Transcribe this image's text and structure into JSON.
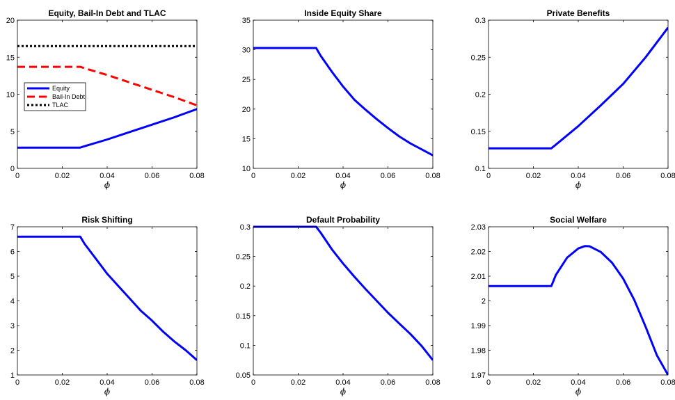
{
  "chart_data": [
    {
      "type": "line",
      "title": "Equity, Bail-In Debt and TLAC",
      "xlabel": "ϕ",
      "ylabel": "",
      "xlim": [
        0,
        0.08
      ],
      "ylim": [
        0,
        20
      ],
      "xticks": [
        0,
        0.02,
        0.04,
        0.06,
        0.08
      ],
      "xtick_labels": [
        "0",
        "0.02",
        "0.04",
        "0.06",
        "0.08"
      ],
      "yticks": [
        0,
        5,
        10,
        15,
        20
      ],
      "ytick_labels": [
        "0",
        "5",
        "10",
        "15",
        "20"
      ],
      "legend": "upper-left",
      "series": [
        {
          "name": "Equity",
          "color": "#0000ff",
          "style": "solid",
          "x": [
            0,
            0.01,
            0.02,
            0.028,
            0.03,
            0.04,
            0.05,
            0.06,
            0.07,
            0.08
          ],
          "y": [
            2.8,
            2.8,
            2.8,
            2.8,
            3.0,
            3.9,
            4.9,
            5.9,
            6.9,
            8.0
          ]
        },
        {
          "name": "Bail-In Debt",
          "color": "#ff0000",
          "style": "dashed",
          "x": [
            0,
            0.01,
            0.02,
            0.028,
            0.03,
            0.04,
            0.05,
            0.06,
            0.07,
            0.08
          ],
          "y": [
            13.7,
            13.7,
            13.7,
            13.7,
            13.5,
            12.6,
            11.6,
            10.6,
            9.6,
            8.5
          ]
        },
        {
          "name": "TLAC",
          "color": "#000000",
          "style": "dotted",
          "x": [
            0,
            0.08
          ],
          "y": [
            16.5,
            16.5
          ]
        }
      ]
    },
    {
      "type": "line",
      "title": "Inside Equity Share",
      "xlabel": "ϕ",
      "ylabel": "",
      "xlim": [
        0,
        0.08
      ],
      "ylim": [
        10,
        35
      ],
      "xticks": [
        0,
        0.02,
        0.04,
        0.06,
        0.08
      ],
      "xtick_labels": [
        "0",
        "0.02",
        "0.04",
        "0.06",
        "0.08"
      ],
      "yticks": [
        10,
        15,
        20,
        25,
        30,
        35
      ],
      "ytick_labels": [
        "10",
        "15",
        "20",
        "25",
        "30",
        "35"
      ],
      "series": [
        {
          "color": "#0000ff",
          "style": "solid",
          "x": [
            0,
            0.01,
            0.02,
            0.028,
            0.03,
            0.035,
            0.04,
            0.045,
            0.05,
            0.055,
            0.06,
            0.065,
            0.07,
            0.075,
            0.08
          ],
          "y": [
            30.3,
            30.3,
            30.3,
            30.3,
            29.0,
            26.3,
            23.8,
            21.6,
            19.9,
            18.3,
            16.8,
            15.4,
            14.2,
            13.2,
            12.2
          ]
        }
      ]
    },
    {
      "type": "line",
      "title": "Private Benefits",
      "xlabel": "ϕ",
      "ylabel": "",
      "xlim": [
        0,
        0.08
      ],
      "ylim": [
        0.1,
        0.3
      ],
      "xticks": [
        0,
        0.02,
        0.04,
        0.06,
        0.08
      ],
      "xtick_labels": [
        "0",
        "0.02",
        "0.04",
        "0.06",
        "0.08"
      ],
      "yticks": [
        0.1,
        0.15,
        0.2,
        0.25,
        0.3
      ],
      "ytick_labels": [
        "0.1",
        "0.15",
        "0.2",
        "0.25",
        "0.3"
      ],
      "series": [
        {
          "color": "#0000ff",
          "style": "solid",
          "x": [
            0,
            0.01,
            0.02,
            0.028,
            0.03,
            0.04,
            0.05,
            0.06,
            0.07,
            0.08
          ],
          "y": [
            0.127,
            0.127,
            0.127,
            0.127,
            0.132,
            0.157,
            0.185,
            0.214,
            0.25,
            0.29
          ]
        }
      ]
    },
    {
      "type": "line",
      "title": "Risk Shifting",
      "xlabel": "ϕ",
      "ylabel": "",
      "xlim": [
        0,
        0.08
      ],
      "ylim": [
        1,
        7
      ],
      "xticks": [
        0,
        0.02,
        0.04,
        0.06,
        0.08
      ],
      "xtick_labels": [
        "0",
        "0.02",
        "0.04",
        "0.06",
        "0.08"
      ],
      "yticks": [
        1,
        2,
        3,
        4,
        5,
        6,
        7
      ],
      "ytick_labels": [
        "1",
        "2",
        "3",
        "4",
        "5",
        "6",
        "7"
      ],
      "series": [
        {
          "color": "#0000ff",
          "style": "solid",
          "x": [
            0,
            0.01,
            0.02,
            0.028,
            0.03,
            0.035,
            0.04,
            0.045,
            0.05,
            0.055,
            0.06,
            0.065,
            0.07,
            0.075,
            0.08
          ],
          "y": [
            6.6,
            6.6,
            6.6,
            6.6,
            6.3,
            5.7,
            5.1,
            4.6,
            4.1,
            3.6,
            3.2,
            2.75,
            2.35,
            2.0,
            1.6
          ]
        }
      ]
    },
    {
      "type": "line",
      "title": "Default Probability",
      "xlabel": "ϕ",
      "ylabel": "",
      "xlim": [
        0,
        0.08
      ],
      "ylim": [
        0.05,
        0.3
      ],
      "xticks": [
        0,
        0.02,
        0.04,
        0.06,
        0.08
      ],
      "xtick_labels": [
        "0",
        "0.02",
        "0.04",
        "0.06",
        "0.08"
      ],
      "yticks": [
        0.05,
        0.1,
        0.15,
        0.2,
        0.25,
        0.3
      ],
      "ytick_labels": [
        "0.05",
        "0.1",
        "0.15",
        "0.2",
        "0.25",
        "0.3"
      ],
      "series": [
        {
          "color": "#0000ff",
          "style": "solid",
          "x": [
            0,
            0.01,
            0.02,
            0.028,
            0.03,
            0.035,
            0.04,
            0.045,
            0.05,
            0.055,
            0.06,
            0.065,
            0.07,
            0.075,
            0.08
          ],
          "y": [
            0.3,
            0.3,
            0.3,
            0.3,
            0.29,
            0.262,
            0.238,
            0.216,
            0.195,
            0.175,
            0.155,
            0.137,
            0.119,
            0.099,
            0.075
          ]
        }
      ]
    },
    {
      "type": "line",
      "title": "Social Welfare",
      "xlabel": "ϕ",
      "ylabel": "",
      "xlim": [
        0,
        0.08
      ],
      "ylim": [
        1.97,
        2.03
      ],
      "xticks": [
        0,
        0.02,
        0.04,
        0.06,
        0.08
      ],
      "xtick_labels": [
        "0",
        "0.02",
        "0.04",
        "0.06",
        "0.08"
      ],
      "yticks": [
        1.97,
        1.98,
        1.99,
        2.0,
        2.01,
        2.02,
        2.03
      ],
      "ytick_labels": [
        "1.97",
        "1.98",
        "1.99",
        "2",
        "2.01",
        "2.02",
        "2.03"
      ],
      "series": [
        {
          "color": "#0000ff",
          "style": "solid",
          "x": [
            0,
            0.01,
            0.02,
            0.028,
            0.03,
            0.035,
            0.04,
            0.043,
            0.045,
            0.05,
            0.055,
            0.06,
            0.065,
            0.07,
            0.075,
            0.08
          ],
          "y": [
            2.006,
            2.006,
            2.006,
            2.006,
            2.0105,
            2.0175,
            2.0212,
            2.0222,
            2.0221,
            2.0198,
            2.0155,
            2.009,
            2.0003,
            1.9895,
            1.978,
            1.97
          ]
        }
      ]
    }
  ]
}
